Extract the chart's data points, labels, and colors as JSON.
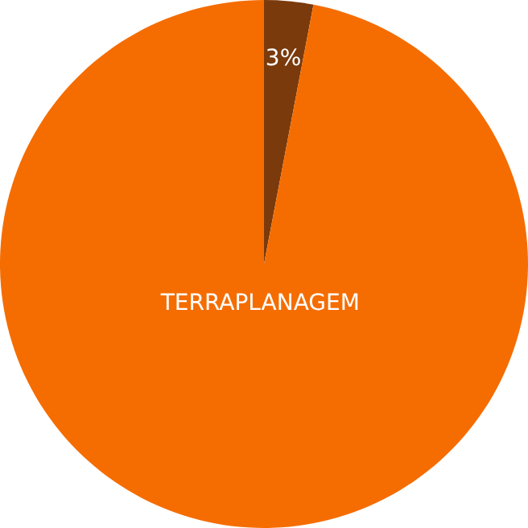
{
  "chart_data": {
    "type": "pie",
    "categories": [
      null,
      "TERRAPLANAGEM"
    ],
    "values": [
      3,
      97
    ],
    "colors": [
      "#7a3a0c",
      "#f56d00"
    ],
    "value_labels": [
      "3%",
      null
    ]
  }
}
